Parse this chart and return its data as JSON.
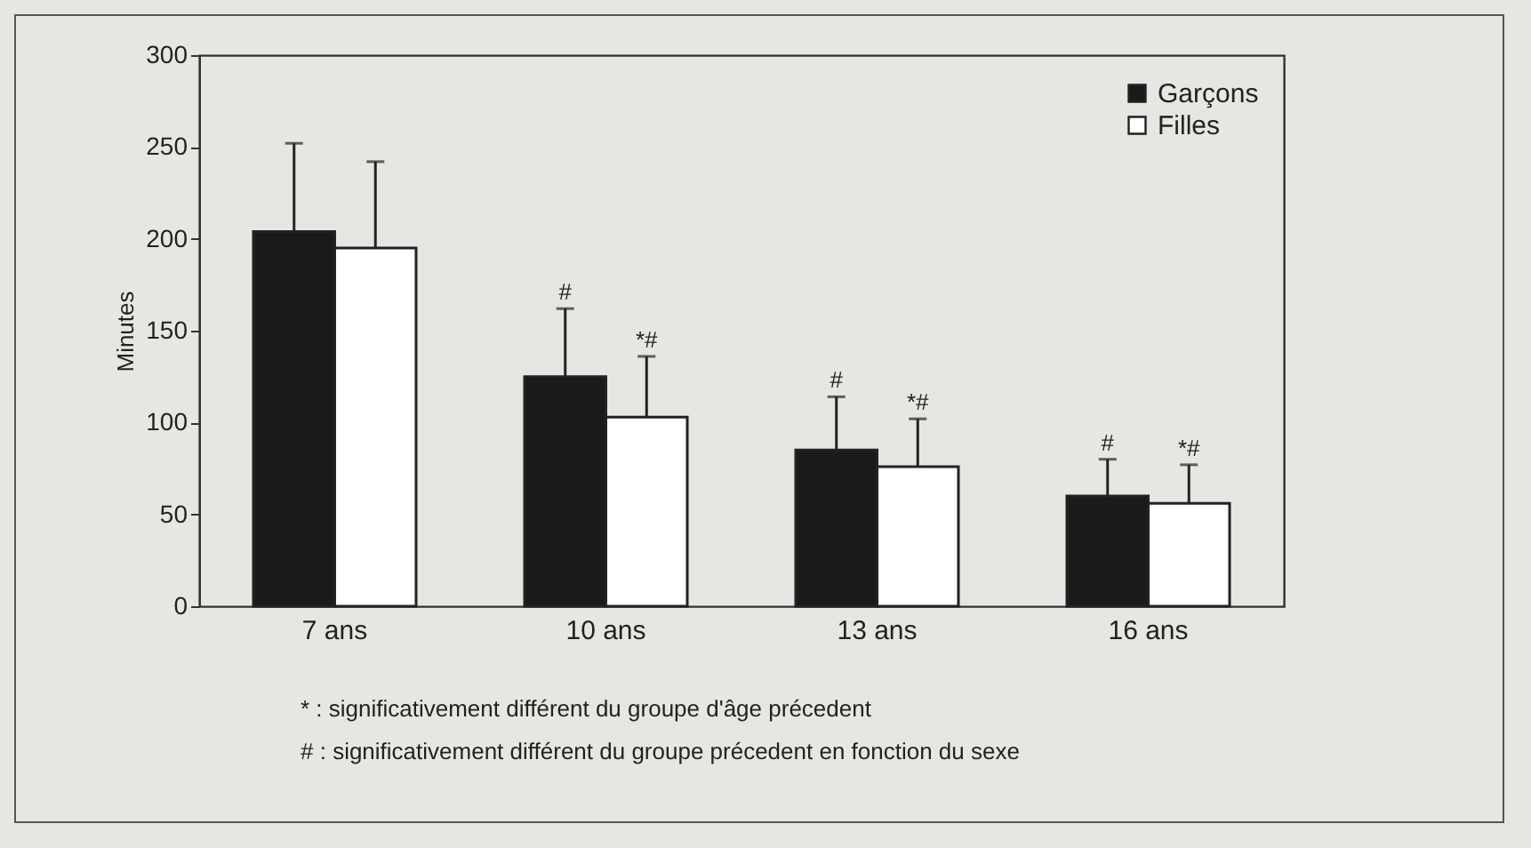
{
  "chart_data": {
    "type": "bar",
    "ylabel": "Minutes",
    "categories": [
      "7 ans",
      "10 ans",
      "13 ans",
      "16 ans"
    ],
    "series": [
      {
        "name": "Garçons",
        "color": "#1a1a1a",
        "values": [
          204,
          125,
          85,
          60
        ],
        "errors": [
          48,
          37,
          29,
          20
        ],
        "value_labels": [
          null,
          "#",
          "#",
          "#"
        ]
      },
      {
        "name": "Filles",
        "color": "#ffffff",
        "values": [
          195,
          103,
          76,
          56
        ],
        "errors": [
          47,
          33,
          26,
          21
        ],
        "value_labels": [
          null,
          "*#",
          "*#",
          "*#"
        ]
      }
    ],
    "ylim": [
      0,
      300
    ],
    "yticks": [
      0,
      50,
      100,
      150,
      200,
      250,
      300
    ],
    "grid": false,
    "legend": "top right",
    "annotations": [
      "* : significativement différent du groupe d'âge précedent",
      "# : significativement différent du groupe précedent en fonction du sexe"
    ]
  }
}
